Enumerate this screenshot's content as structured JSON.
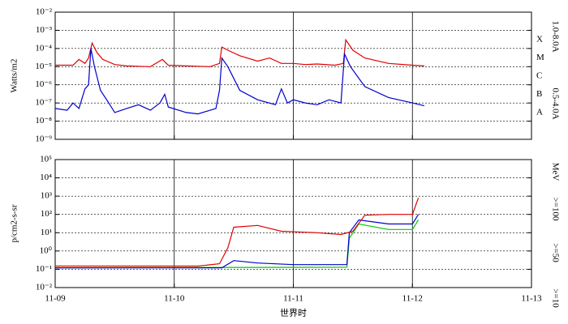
{
  "chart_data": [
    {
      "type": "line",
      "ylabel": "Watts/m2",
      "log": true,
      "grid": true,
      "xlim": [
        0,
        4
      ],
      "ylim": [
        1e-09,
        0.01
      ],
      "yticks": [
        {
          "value": 1e-09,
          "label": "10⁻⁹"
        },
        {
          "value": 1e-08,
          "label": "10⁻⁸"
        },
        {
          "value": 1e-07,
          "label": "10⁻⁷"
        },
        {
          "value": 1e-06,
          "label": "10⁻⁶"
        },
        {
          "value": 1e-05,
          "label": "10⁻⁵"
        },
        {
          "value": 0.0001,
          "label": "10⁻⁴"
        },
        {
          "value": 0.001,
          "label": "10⁻³"
        },
        {
          "value": 0.01,
          "label": "10⁻²"
        }
      ],
      "class_labels": [
        {
          "value": 0.0003,
          "label": "X"
        },
        {
          "value": 3e-05,
          "label": "M"
        },
        {
          "value": 3e-06,
          "label": "C"
        },
        {
          "value": 3e-07,
          "label": "B"
        },
        {
          "value": 3e-08,
          "label": "A"
        }
      ],
      "series": [
        {
          "name": "1.0-8.0A",
          "color": "#e00000",
          "x": [
            0,
            0.15,
            0.2,
            0.25,
            0.28,
            0.31,
            0.35,
            0.4,
            0.5,
            0.6,
            0.8,
            0.9,
            0.95,
            1.1,
            1.3,
            1.38,
            1.4,
            1.45,
            1.55,
            1.7,
            1.8,
            1.9,
            2.0,
            2.1,
            2.2,
            2.35,
            2.42,
            2.44,
            2.5,
            2.6,
            2.8,
            3.0,
            3.1
          ],
          "values": [
            1.2e-05,
            1.2e-05,
            2.5e-05,
            1.5e-05,
            3e-05,
            0.0002,
            6e-05,
            2.5e-05,
            1.3e-05,
            1.1e-05,
            1e-05,
            2.5e-05,
            1.2e-05,
            1.1e-05,
            1e-05,
            1.5e-05,
            0.00012,
            8e-05,
            4e-05,
            2e-05,
            3e-05,
            1.5e-05,
            1.5e-05,
            1.3e-05,
            1.4e-05,
            1.2e-05,
            1.5e-05,
            0.0003,
            8e-05,
            3e-05,
            1.5e-05,
            1.2e-05,
            1.1e-05
          ]
        },
        {
          "name": "0.5-4.0A",
          "color": "#0000cc",
          "x": [
            0,
            0.1,
            0.15,
            0.2,
            0.25,
            0.28,
            0.3,
            0.33,
            0.38,
            0.45,
            0.5,
            0.6,
            0.7,
            0.8,
            0.88,
            0.92,
            0.95,
            1.1,
            1.2,
            1.35,
            1.38,
            1.4,
            1.45,
            1.55,
            1.7,
            1.85,
            1.9,
            1.95,
            2.0,
            2.1,
            2.2,
            2.3,
            2.4,
            2.43,
            2.48,
            2.6,
            2.8,
            3.0,
            3.1
          ],
          "values": [
            5e-08,
            4e-08,
            1e-07,
            5e-08,
            6e-07,
            1e-06,
            0.0001,
            1e-05,
            5e-07,
            1e-07,
            3e-08,
            5e-08,
            8e-08,
            4e-08,
            1e-07,
            3e-07,
            6e-08,
            3e-08,
            2.5e-08,
            5e-08,
            5e-07,
            3e-05,
            1e-05,
            5e-07,
            1.5e-07,
            8e-08,
            6e-07,
            1e-07,
            1.5e-07,
            1e-07,
            8e-08,
            1.5e-07,
            1e-07,
            5e-05,
            1e-05,
            8e-07,
            2e-07,
            1e-07,
            7e-08
          ]
        }
      ]
    },
    {
      "type": "line",
      "ylabel": "p/cm2-s-sr",
      "xlabel": "世界时",
      "unit_label": "MeV",
      "log": true,
      "grid": true,
      "xlim": [
        0,
        4
      ],
      "ylim": [
        0.01,
        100000
      ],
      "xticks": [
        {
          "value": 0,
          "label": "11-09"
        },
        {
          "value": 1,
          "label": "11-10"
        },
        {
          "value": 2,
          "label": "11-11"
        },
        {
          "value": 3,
          "label": "11-12"
        },
        {
          "value": 4,
          "label": "11-13"
        }
      ],
      "yticks": [
        {
          "value": 0.01,
          "label": "10⁻²"
        },
        {
          "value": 0.1,
          "label": "10⁻¹"
        },
        {
          "value": 1,
          "label": "10⁰"
        },
        {
          "value": 10,
          "label": "10¹"
        },
        {
          "value": 100,
          "label": "10²"
        },
        {
          "value": 1000,
          "label": "10³"
        },
        {
          "value": 10000,
          "label": "10⁴"
        },
        {
          "value": 100000,
          "label": "10⁵"
        }
      ],
      "series": [
        {
          "name": ">=100",
          "color": "#00cc00",
          "x": [
            0,
            2.45,
            2.47,
            2.55,
            2.8,
            3.0,
            3.05
          ],
          "values": [
            0.12,
            0.13,
            5,
            30,
            15,
            15,
            50
          ]
        },
        {
          "name": ">=50",
          "color": "#0000cc",
          "x": [
            0,
            1.4,
            1.5,
            1.7,
            2.0,
            2.45,
            2.47,
            2.55,
            2.8,
            3.0,
            3.05
          ],
          "values": [
            0.12,
            0.12,
            0.3,
            0.22,
            0.18,
            0.18,
            10,
            50,
            30,
            30,
            100
          ]
        },
        {
          "name": ">=10",
          "color": "#e00000",
          "x": [
            0,
            1.0,
            1.2,
            1.38,
            1.45,
            1.5,
            1.7,
            1.9,
            2.2,
            2.4,
            2.5,
            2.6,
            2.8,
            3.0,
            3.05
          ],
          "values": [
            0.15,
            0.15,
            0.15,
            0.2,
            1.5,
            20,
            25,
            12,
            10,
            8,
            12,
            90,
            100,
            100,
            800
          ]
        }
      ]
    }
  ]
}
